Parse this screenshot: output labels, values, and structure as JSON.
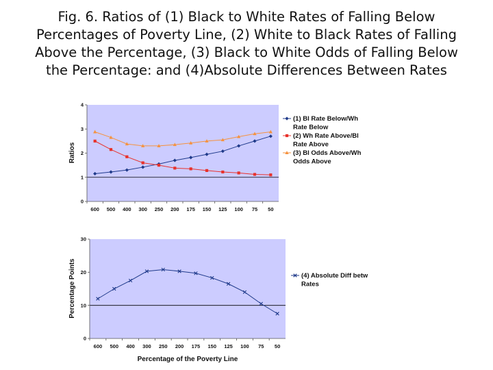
{
  "figure": {
    "title_lines": [
      "Fig. 6.  Ratios of (1) Black to White Rates of Falling Below",
      "Percentages of Poverty Line, (2) White to Black Rates of Falling",
      "Above the Percentage, (3) Black to White Odds of Falling Below",
      "the Percentage: and (4)Absolute Differences Between Rates"
    ]
  },
  "colors": {
    "plot_bg": "#ccccff",
    "grid": "#000000",
    "series1": "#1f3a8a",
    "series2": "#e8322b",
    "series3": "#f5923e",
    "series4": "#1f3a8a"
  },
  "chart_data": [
    {
      "type": "line",
      "categories": [
        "600",
        "500",
        "400",
        "300",
        "250",
        "200",
        "175",
        "150",
        "125",
        "100",
        "75",
        "50"
      ],
      "series": [
        {
          "name": "(1) Bl Rate Below/Wh Rate Below",
          "legend_lines": [
            "(1) Bl Rate Below/Wh",
            "Rate Below"
          ],
          "values": [
            1.15,
            1.22,
            1.3,
            1.42,
            1.55,
            1.7,
            1.82,
            1.95,
            2.08,
            2.3,
            2.5,
            2.7
          ]
        },
        {
          "name": "(2) Wh Rate Above/Bl Rate Above",
          "legend_lines": [
            "(2) Wh Rate Above/Bl",
            "Rate Above"
          ],
          "values": [
            2.5,
            2.15,
            1.85,
            1.6,
            1.5,
            1.38,
            1.35,
            1.28,
            1.22,
            1.18,
            1.12,
            1.1
          ]
        },
        {
          "name": "(3) Bl Odds Above/Wh Odds Above",
          "legend_lines": [
            "(3) Bl Odds Above/Wh",
            "Odds Above"
          ],
          "values": [
            2.88,
            2.65,
            2.38,
            2.3,
            2.3,
            2.35,
            2.42,
            2.5,
            2.55,
            2.68,
            2.8,
            2.88
          ]
        }
      ],
      "xlabel": "",
      "ylabel": "Ratios",
      "ylim": [
        0,
        4
      ],
      "yticks": [
        "0",
        "1",
        "2",
        "3",
        "4"
      ],
      "gridlines_y": [
        1
      ]
    },
    {
      "type": "line",
      "categories": [
        "600",
        "500",
        "400",
        "300",
        "250",
        "200",
        "175",
        "150",
        "125",
        "100",
        "75",
        "50"
      ],
      "series": [
        {
          "name": "(4) Absolute Diff betw Rates",
          "legend_lines": [
            "(4) Absolute Diff betw",
            "Rates"
          ],
          "values": [
            12,
            15,
            17.5,
            20.3,
            20.8,
            20.3,
            19.7,
            18.3,
            16.5,
            14,
            10.5,
            7.5
          ]
        }
      ],
      "xlabel": "Percentage of the Poverty Line",
      "ylabel": "Percentage Points",
      "ylim": [
        0,
        30
      ],
      "yticks": [
        "0",
        "10",
        "20",
        "30"
      ],
      "gridlines_y": [
        10
      ]
    }
  ]
}
